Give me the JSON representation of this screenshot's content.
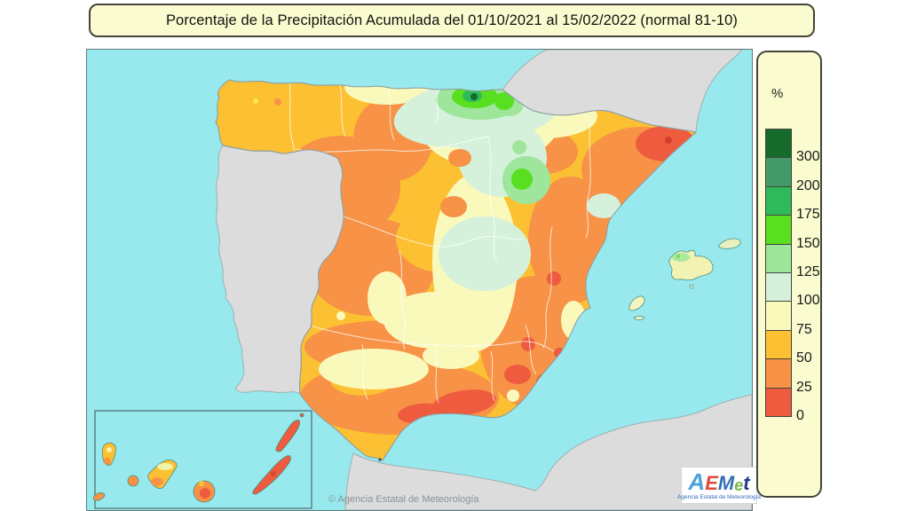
{
  "title_bar": {
    "text": "Porcentaje de la Precipitación Acumulada del 01/10/2021 al 15/02/2022 (normal 81-10)"
  },
  "legend": {
    "unit_label": "%",
    "stops": [
      {
        "value": "300",
        "color": "#156b2b"
      },
      {
        "value": "200",
        "color": "#44996a"
      },
      {
        "value": "175",
        "color": "#2eb95a"
      },
      {
        "value": "150",
        "color": "#58df20"
      },
      {
        "value": "125",
        "color": "#9de69b"
      },
      {
        "value": "100",
        "color": "#d5f1dc"
      },
      {
        "value": "75",
        "color": "#f9f9bc"
      },
      {
        "value": "50",
        "color": "#fcc033"
      },
      {
        "value": "25",
        "color": "#f79246"
      },
      {
        "value": "0",
        "color": "#ee5b3f"
      }
    ]
  },
  "map": {
    "copyright": "© Agencia Estatal de Meteorología",
    "sea_color": "#97e9ee",
    "foreign_land_color": "#dcdcdc",
    "precip_colors": {
      "0-25": "#ee5b3f",
      "25-50": "#f79246",
      "50-75": "#fcc033",
      "75-100": "#f9f9bc",
      "100-125": "#d5f1dc",
      "125-150": "#9de69b",
      "150-175": "#58df20",
      "175-200": "#2eb95a",
      "200-300": "#44996a",
      "300+": "#156b2b"
    }
  },
  "logo": {
    "letters": [
      {
        "char": "A",
        "color": "#4aa3d8",
        "size": 26
      },
      {
        "char": "E",
        "color": "#e0493a",
        "size": 22
      },
      {
        "char": "M",
        "color": "#2e6fb5",
        "size": 22
      },
      {
        "char": "e",
        "color": "#7ab648",
        "size": 18
      },
      {
        "char": "t",
        "color": "#22368f",
        "size": 22
      }
    ],
    "subtitle": "Agencia Estatal de Meteorología"
  }
}
